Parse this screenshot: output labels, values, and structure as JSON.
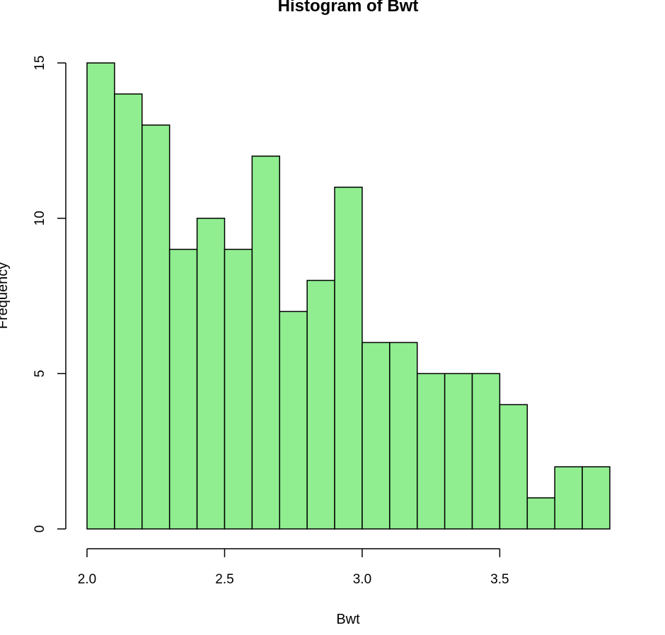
{
  "chart_data": {
    "type": "bar",
    "subtype": "histogram",
    "title": "Histogram of Bwt",
    "xlabel": "Bwt",
    "ylabel": "Frequency",
    "bins": [
      {
        "start": 2.0,
        "end": 2.1,
        "count": 15
      },
      {
        "start": 2.1,
        "end": 2.2,
        "count": 14
      },
      {
        "start": 2.2,
        "end": 2.3,
        "count": 13
      },
      {
        "start": 2.3,
        "end": 2.4,
        "count": 9
      },
      {
        "start": 2.4,
        "end": 2.5,
        "count": 10
      },
      {
        "start": 2.5,
        "end": 2.6,
        "count": 9
      },
      {
        "start": 2.6,
        "end": 2.7,
        "count": 12
      },
      {
        "start": 2.7,
        "end": 2.8,
        "count": 7
      },
      {
        "start": 2.8,
        "end": 2.9,
        "count": 8
      },
      {
        "start": 2.9,
        "end": 3.0,
        "count": 11
      },
      {
        "start": 3.0,
        "end": 3.1,
        "count": 6
      },
      {
        "start": 3.1,
        "end": 3.2,
        "count": 6
      },
      {
        "start": 3.2,
        "end": 3.3,
        "count": 5
      },
      {
        "start": 3.3,
        "end": 3.4,
        "count": 5
      },
      {
        "start": 3.4,
        "end": 3.5,
        "count": 5
      },
      {
        "start": 3.5,
        "end": 3.6,
        "count": 4
      },
      {
        "start": 3.6,
        "end": 3.7,
        "count": 1
      },
      {
        "start": 3.7,
        "end": 3.8,
        "count": 2
      },
      {
        "start": 3.8,
        "end": 3.9,
        "count": 2
      }
    ],
    "x_ticks": [
      2.0,
      2.5,
      3.0,
      3.5
    ],
    "x_tick_labels": [
      "2.0",
      "2.5",
      "3.0",
      "3.5"
    ],
    "y_ticks": [
      0,
      5,
      10,
      15
    ],
    "y_tick_labels": [
      "0",
      "5",
      "10",
      "15"
    ],
    "xlim": [
      2.0,
      3.9
    ],
    "ylim": [
      0,
      15
    ],
    "grid": false,
    "bar_color": "#90EE90",
    "edge_color": "#000000"
  }
}
